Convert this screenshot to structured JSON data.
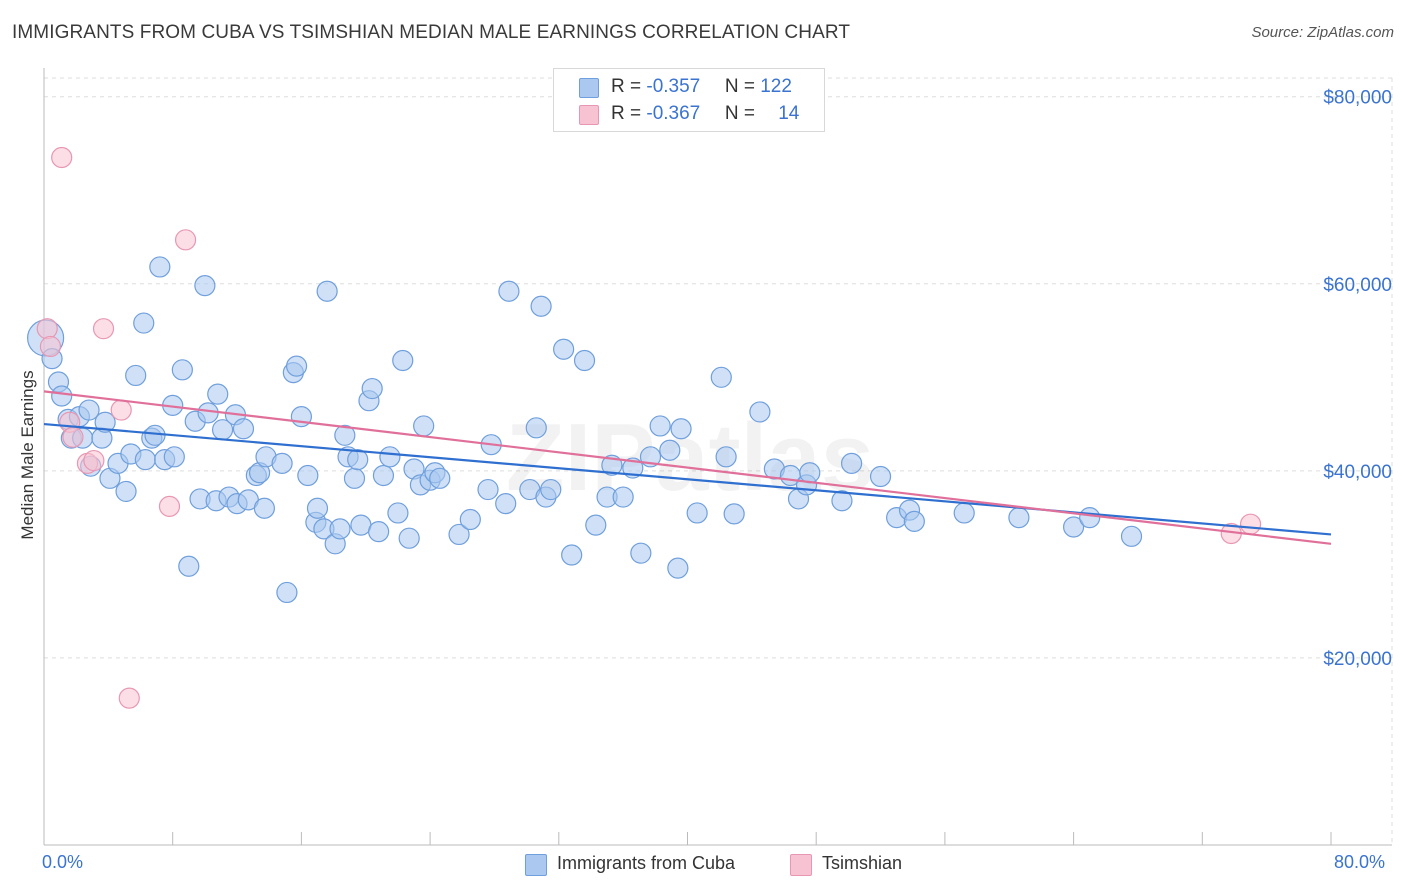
{
  "title": "IMMIGRANTS FROM CUBA VS TSIMSHIAN MEDIAN MALE EARNINGS CORRELATION CHART",
  "source": "Source: ZipAtlas.com",
  "watermark": "ZIPatlas",
  "colors": {
    "blue_fill": "#aac8f0",
    "blue_stroke": "#6f9fdc",
    "blue_line": "#2f6fd0",
    "pink_fill": "#f7c2d2",
    "pink_stroke": "#e897b2",
    "pink_line": "#e0709a",
    "axis_text": "#3a73d0",
    "grid": "#dddddd"
  },
  "legend": {
    "rows": [
      {
        "r_label": "R = ",
        "r_value": "-0.357",
        "n_label": "N = ",
        "n_value": "122",
        "series": "blue"
      },
      {
        "r_label": "R = ",
        "r_value": "-0.367",
        "n_label": "N = ",
        "n_value": "14",
        "series": "pink"
      }
    ]
  },
  "bottom_legend": {
    "items": [
      {
        "label": "Immigrants from Cuba",
        "series": "blue"
      },
      {
        "label": "Tsimshian",
        "series": "pink"
      }
    ]
  },
  "x_axis": {
    "min_label": "0.0%",
    "max_label": "80.0%"
  },
  "chart_data": {
    "type": "scatter",
    "title": "IMMIGRANTS FROM CUBA VS TSIMSHIAN MEDIAN MALE EARNINGS CORRELATION CHART",
    "xlabel": "",
    "ylabel": "Median Male Earnings",
    "xlim": [
      0,
      80
    ],
    "ylim": [
      0,
      82000
    ],
    "y_ticks": [
      {
        "value": 20000,
        "label": "$20,000"
      },
      {
        "value": 40000,
        "label": "$40,000"
      },
      {
        "value": 60000,
        "label": "$60,000"
      },
      {
        "value": 80000,
        "label": "$80,000"
      }
    ],
    "x_tick_values": [
      0,
      8,
      16,
      24,
      32,
      40,
      48,
      56,
      64,
      72,
      80
    ],
    "grid": true,
    "legend_position": "top-center",
    "series": [
      {
        "name": "Immigrants from Cuba",
        "color": "blue",
        "trend": {
          "x0": 0,
          "y0": 45000,
          "x1": 80,
          "y1": 33200
        },
        "points": [
          [
            0.1,
            54200,
            18
          ],
          [
            0.5,
            52000,
            10
          ],
          [
            0.9,
            49500,
            10
          ],
          [
            1.1,
            48000,
            10
          ],
          [
            1.5,
            45500,
            10
          ],
          [
            1.7,
            43500,
            10
          ],
          [
            2.2,
            45800,
            10
          ],
          [
            2.4,
            43500,
            10
          ],
          [
            2.8,
            46500,
            10
          ],
          [
            2.9,
            40500,
            10
          ],
          [
            3.6,
            43500,
            10
          ],
          [
            3.8,
            45200,
            10
          ],
          [
            4.1,
            39200,
            10
          ],
          [
            4.6,
            40800,
            10
          ],
          [
            5.1,
            37800,
            10
          ],
          [
            5.4,
            41800,
            10
          ],
          [
            5.7,
            50200,
            10
          ],
          [
            6.2,
            55800,
            10
          ],
          [
            6.3,
            41200,
            10
          ],
          [
            6.7,
            43500,
            10
          ],
          [
            6.9,
            43800,
            10
          ],
          [
            7.2,
            61800,
            10
          ],
          [
            7.5,
            41200,
            10
          ],
          [
            8.0,
            47000,
            10
          ],
          [
            8.1,
            41500,
            10
          ],
          [
            8.6,
            50800,
            10
          ],
          [
            9.0,
            29800,
            10
          ],
          [
            9.4,
            45300,
            10
          ],
          [
            9.7,
            37000,
            10
          ],
          [
            10.0,
            59800,
            10
          ],
          [
            10.2,
            46200,
            10
          ],
          [
            10.7,
            36800,
            10
          ],
          [
            10.8,
            48200,
            10
          ],
          [
            11.1,
            44400,
            10
          ],
          [
            11.5,
            37200,
            10
          ],
          [
            11.9,
            46000,
            10
          ],
          [
            12.0,
            36500,
            10
          ],
          [
            12.4,
            44500,
            10
          ],
          [
            12.7,
            36900,
            10
          ],
          [
            13.2,
            39500,
            10
          ],
          [
            13.4,
            39800,
            10
          ],
          [
            13.7,
            36000,
            10
          ],
          [
            13.8,
            41500,
            10
          ],
          [
            14.8,
            40800,
            10
          ],
          [
            15.1,
            27000,
            10
          ],
          [
            15.5,
            50500,
            10
          ],
          [
            15.7,
            51200,
            10
          ],
          [
            16.0,
            45800,
            10
          ],
          [
            16.4,
            39500,
            10
          ],
          [
            16.9,
            34500,
            10
          ],
          [
            17.0,
            36000,
            10
          ],
          [
            17.4,
            33800,
            10
          ],
          [
            17.6,
            59200,
            10
          ],
          [
            18.1,
            32200,
            10
          ],
          [
            18.4,
            33800,
            10
          ],
          [
            18.7,
            43800,
            10
          ],
          [
            18.9,
            41500,
            10
          ],
          [
            19.3,
            39200,
            10
          ],
          [
            19.5,
            41200,
            10
          ],
          [
            19.7,
            34200,
            10
          ],
          [
            20.2,
            47500,
            10
          ],
          [
            20.4,
            48800,
            10
          ],
          [
            20.8,
            33500,
            10
          ],
          [
            21.1,
            39500,
            10
          ],
          [
            21.5,
            41500,
            10
          ],
          [
            22.0,
            35500,
            10
          ],
          [
            22.3,
            51800,
            10
          ],
          [
            22.7,
            32800,
            10
          ],
          [
            23.0,
            40200,
            10
          ],
          [
            23.4,
            38500,
            10
          ],
          [
            23.6,
            44800,
            10
          ],
          [
            24.0,
            39000,
            10
          ],
          [
            24.3,
            39800,
            10
          ],
          [
            24.6,
            39200,
            10
          ],
          [
            25.8,
            33200,
            10
          ],
          [
            26.5,
            34800,
            10
          ],
          [
            27.6,
            38000,
            10
          ],
          [
            27.8,
            42800,
            10
          ],
          [
            28.7,
            36500,
            10
          ],
          [
            28.9,
            59200,
            10
          ],
          [
            30.2,
            38000,
            10
          ],
          [
            30.6,
            44600,
            10
          ],
          [
            30.9,
            57600,
            10
          ],
          [
            31.2,
            37200,
            10
          ],
          [
            31.5,
            38000,
            10
          ],
          [
            32.3,
            53000,
            10
          ],
          [
            32.8,
            31000,
            10
          ],
          [
            33.6,
            51800,
            10
          ],
          [
            34.3,
            34200,
            10
          ],
          [
            35.0,
            37200,
            10
          ],
          [
            35.3,
            40600,
            10
          ],
          [
            36.0,
            37200,
            10
          ],
          [
            36.6,
            40300,
            10
          ],
          [
            37.1,
            31200,
            10
          ],
          [
            37.7,
            41500,
            10
          ],
          [
            38.3,
            44800,
            10
          ],
          [
            38.9,
            42200,
            10
          ],
          [
            39.4,
            29600,
            10
          ],
          [
            39.6,
            44500,
            10
          ],
          [
            40.6,
            35500,
            10
          ],
          [
            42.1,
            50000,
            10
          ],
          [
            42.4,
            41500,
            10
          ],
          [
            42.9,
            35400,
            10
          ],
          [
            44.5,
            46300,
            10
          ],
          [
            45.4,
            40200,
            10
          ],
          [
            46.4,
            39500,
            10
          ],
          [
            46.9,
            37000,
            10
          ],
          [
            47.4,
            38500,
            10
          ],
          [
            47.6,
            39800,
            10
          ],
          [
            49.6,
            36800,
            10
          ],
          [
            50.2,
            40800,
            10
          ],
          [
            52.0,
            39400,
            10
          ],
          [
            53.0,
            35000,
            10
          ],
          [
            53.8,
            35800,
            10
          ],
          [
            54.1,
            34600,
            10
          ],
          [
            57.2,
            35500,
            10
          ],
          [
            60.6,
            35000,
            10
          ],
          [
            64.0,
            34000,
            10
          ],
          [
            65.0,
            35000,
            10
          ],
          [
            67.6,
            33000,
            10
          ]
        ]
      },
      {
        "name": "Tsimshian",
        "color": "pink",
        "trend": {
          "x0": 0,
          "y0": 48500,
          "x1": 80,
          "y1": 32200
        },
        "points": [
          [
            0.2,
            55200,
            10
          ],
          [
            0.4,
            53300,
            10
          ],
          [
            1.1,
            73500,
            10
          ],
          [
            1.6,
            45200,
            10
          ],
          [
            1.8,
            43600,
            10
          ],
          [
            2.7,
            40800,
            10
          ],
          [
            3.1,
            41100,
            10
          ],
          [
            3.7,
            55200,
            10
          ],
          [
            4.8,
            46500,
            10
          ],
          [
            5.3,
            15700,
            10
          ],
          [
            7.8,
            36200,
            10
          ],
          [
            8.8,
            64700,
            10
          ],
          [
            73.8,
            33300,
            10
          ],
          [
            75.0,
            34300,
            10
          ]
        ]
      }
    ]
  }
}
